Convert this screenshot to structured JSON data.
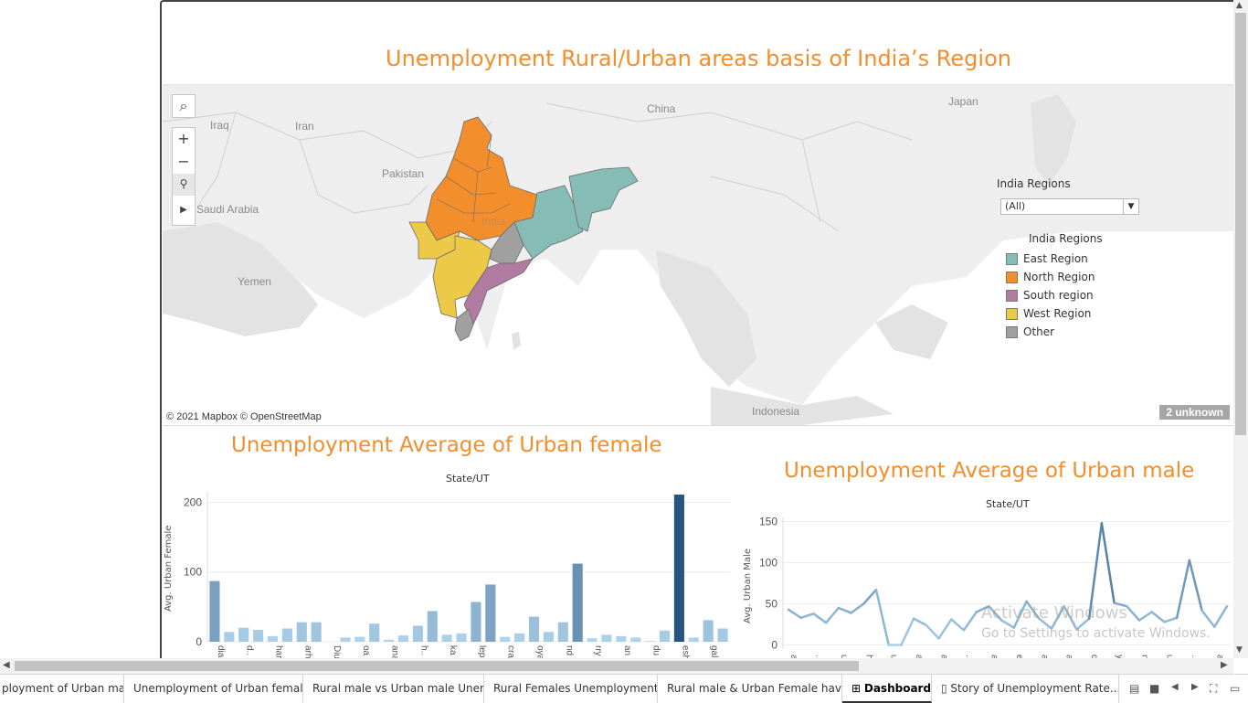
{
  "dashboard": {
    "title": "Unemployment Rural/Urban areas basis of India’s Region"
  },
  "map": {
    "countries": [
      "Iraq",
      "Iran",
      "Pakistan",
      "China",
      "Japan",
      "Saudi Arabia",
      "Yemen",
      "India",
      "Indonesia"
    ],
    "attribution": "© 2021 Mapbox © OpenStreetMap",
    "unknown_badge": "2 unknown",
    "tools": [
      "search-icon",
      "zoom-in-icon",
      "zoom-out-icon",
      "reset-pin-icon",
      "expand-arrow-icon"
    ]
  },
  "filter": {
    "label": "India Regions",
    "value": "(All)"
  },
  "legend": {
    "title": "India Regions",
    "items": [
      {
        "label": "East Region",
        "color": "#86bcb6"
      },
      {
        "label": "North Region",
        "color": "#f28e2b"
      },
      {
        "label": "South region",
        "color": "#b07aa1"
      },
      {
        "label": "West Region",
        "color": "#edc948"
      },
      {
        "label": "Other",
        "color": "#a0a0a0"
      }
    ]
  },
  "female_chart": {
    "title": "Unemployment Average  of Urban female",
    "header": "State/UT",
    "ylabel": "Avg. Urban Female"
  },
  "male_chart": {
    "title": "Unemployment Average of Urban male",
    "header": "State/UT",
    "ylabel": "Avg. Urban Male"
  },
  "chart_data": [
    {
      "type": "bar",
      "title": "Unemployment Average  of Urban female",
      "xlabel": "State/UT",
      "ylabel": "Avg. Urban Female",
      "ylim": [
        0,
        215
      ],
      "yticks": [
        0,
        100,
        200
      ],
      "tick_labels": [
        "dia",
        "d..",
        "har",
        "arh",
        "Diu",
        "oa",
        "ana",
        "h..",
        "ka",
        "lep",
        "cra",
        "oya",
        "nd",
        "rry",
        "an",
        "du",
        "esh",
        "gal"
      ],
      "values": [
        87,
        14,
        20,
        17,
        8,
        19,
        28,
        28,
        0,
        6,
        7,
        26,
        3,
        9,
        23,
        44,
        10,
        12,
        57,
        82,
        7,
        12,
        36,
        14,
        28,
        112,
        5,
        10,
        8,
        6,
        1,
        16,
        211,
        6,
        31,
        19
      ],
      "colors_hint": "light blue low, dark blue high",
      "grid": true
    },
    {
      "type": "line",
      "title": "Unemployment Average of Urban male",
      "xlabel": "State/UT",
      "ylabel": "Avg. Urban Male",
      "ylim": [
        -5,
        155
      ],
      "yticks": [
        0,
        50,
        100,
        150
      ],
      "tick_labels": [
        "a",
        "..",
        "ur",
        "h",
        "u",
        "a",
        "a",
        "..",
        "a",
        "ep",
        "a",
        "a",
        "d",
        "y",
        "n",
        "u",
        "..",
        "al"
      ],
      "values": [
        43,
        33,
        38,
        27,
        45,
        39,
        50,
        67,
        0,
        0,
        32,
        24,
        8,
        31,
        18,
        40,
        47,
        30,
        21,
        53,
        32,
        20,
        47,
        19,
        32,
        148,
        51,
        47,
        30,
        40,
        28,
        33,
        103,
        42,
        22,
        47
      ],
      "grid": true
    }
  ],
  "watermark": {
    "line1": "Activate Windows",
    "line2": "Go to Settings to activate Windows."
  },
  "tabs": [
    {
      "label": "ployment of Urban male",
      "active": false
    },
    {
      "label": "Unemployment of Urban female",
      "active": false
    },
    {
      "label": "Rural male vs Urban male Unem...",
      "active": false
    },
    {
      "label": "Rural Females Unemployment",
      "active": false
    },
    {
      "label": "Rural male & Urban Female hav...",
      "active": false
    },
    {
      "label": "Dashboard",
      "active": true
    },
    {
      "label": "Story of Unemployment Rate...",
      "active": false
    }
  ],
  "colors": {
    "title_orange": "#f28e2b",
    "bar_light": "#9ecae9",
    "bar_dark": "#2a5783",
    "line": "#4e79a7"
  }
}
